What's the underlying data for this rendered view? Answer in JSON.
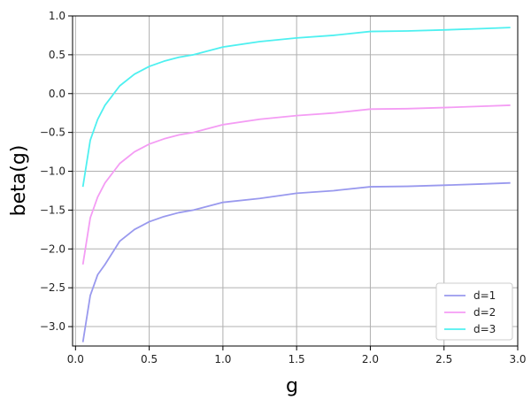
{
  "chart_data": {
    "type": "line",
    "title": "",
    "xlabel": "g",
    "ylabel": "beta(g)",
    "xlim": [
      -0.02,
      3.0
    ],
    "ylim": [
      -3.25,
      1.0
    ],
    "xticks": [
      0.0,
      0.5,
      1.0,
      1.5,
      2.0,
      2.5,
      3.0
    ],
    "xtick_labels": [
      "0.0",
      "0.5",
      "1.0",
      "1.5",
      "2.0",
      "2.5",
      "3.0"
    ],
    "yticks": [
      1.0,
      0.5,
      0.0,
      -0.5,
      -1.0,
      -1.5,
      -2.0,
      -2.5,
      -3.0
    ],
    "ytick_labels": [
      "1.0",
      "0.5",
      "0.0",
      "−0.5",
      "−1.0",
      "−1.5",
      "−2.0",
      "−2.5",
      "−3.0"
    ],
    "grid": true,
    "legend_position": "bottom-right",
    "x": [
      0.05,
      0.1,
      0.15,
      0.2,
      0.3,
      0.4,
      0.5,
      0.6,
      0.7,
      0.8,
      1.0,
      1.25,
      1.5,
      1.75,
      2.0,
      2.25,
      2.5,
      2.75,
      2.95
    ],
    "series": [
      {
        "name": "d=1",
        "color": "#9999ee",
        "values": [
          -3.2,
          -2.6,
          -2.333,
          -2.2,
          -1.9,
          -1.75,
          -1.65,
          -1.583,
          -1.533,
          -1.5,
          -1.4,
          -1.35,
          -1.283,
          -1.25,
          -1.2,
          -1.194,
          -1.18,
          -1.164,
          -1.15
        ]
      },
      {
        "name": "d=2",
        "color": "#f49cf4",
        "values": [
          -2.2,
          -1.6,
          -1.333,
          -1.15,
          -0.9,
          -0.75,
          -0.65,
          -0.583,
          -0.533,
          -0.5,
          -0.4,
          -0.33,
          -0.283,
          -0.25,
          -0.2,
          -0.194,
          -0.18,
          -0.164,
          -0.15
        ]
      },
      {
        "name": "d=3",
        "color": "#4ef0f0",
        "values": [
          -1.2,
          -0.6,
          -0.333,
          -0.15,
          0.1,
          0.25,
          0.35,
          0.417,
          0.467,
          0.5,
          0.6,
          0.67,
          0.717,
          0.75,
          0.8,
          0.806,
          0.82,
          0.836,
          0.85
        ]
      }
    ]
  }
}
